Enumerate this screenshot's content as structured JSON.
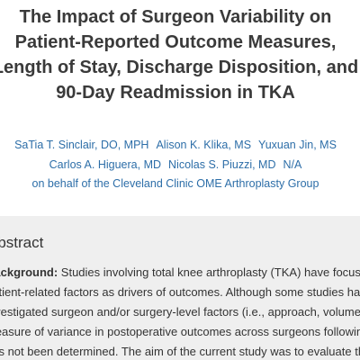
{
  "header": {
    "title": [
      "The Impact of Surgeon Variability on",
      "Patient-Reported Outcome Measures,",
      "Length of Stay, Discharge Disposition, and",
      "90-Day Readmission in TKA"
    ]
  },
  "authors": [
    [
      "SaTia T. Sinclair, DO, MPH",
      "Alison K. Klika, MS",
      "Yuxuan Jin, MS"
    ],
    [
      "Carlos A. Higuera, MD",
      "Nicolas S. Piuzzi, MD",
      "N/A"
    ]
  ],
  "group": "on behalf of the Cleveland Clinic OME Arthroplasty Group",
  "abstract": {
    "heading": "Abstract",
    "label": "Background:",
    "lines": [
      "Studies involving total knee arthroplasty (TKA) have focused on",
      "patient-related factors as drivers of outcomes. Although some studies have",
      "investigated surgeon and/or surgery-level factors (i.e., approach, volume), the",
      "measure of variance in postoperative outcomes across surgeons following TKA",
      "has not been determined. The aim of the current study was to evaluate the"
    ]
  }
}
